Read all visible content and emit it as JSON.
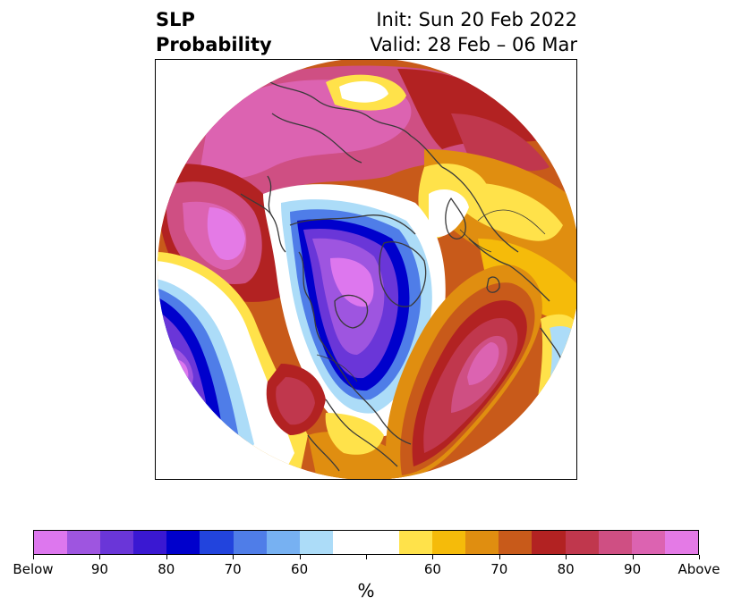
{
  "title": {
    "left_line1": "SLP",
    "left_line2": "Probability",
    "right_line1": "Init: Sun 20 Feb 2022",
    "right_line2": "Valid: 28 Feb – 06 Mar"
  },
  "colorbar": {
    "colors": [
      "#dd77ee",
      "#9e55e0",
      "#6a36d8",
      "#3a18d2",
      "#0000cc",
      "#2244dd",
      "#4f7de8",
      "#77b1f2",
      "#acdcf8",
      "#ffffff",
      "#ffffff",
      "#ffe24a",
      "#f5bb0a",
      "#e08e10",
      "#c85a1a",
      "#b22222",
      "#c0374d",
      "#cf4f83",
      "#dc63b1",
      "#e47ae6"
    ],
    "labels": [
      "Below",
      "90",
      "80",
      "70",
      "60",
      "",
      "60",
      "70",
      "80",
      "90",
      "Above"
    ],
    "unit": "%"
  },
  "map": {
    "projection": "north-polar-stereographic",
    "field": "SLP probability",
    "palette": {
      "above_high": "#e47ae6",
      "above_mid": "#cf4f83",
      "above_low": "#b22222",
      "orange": "#c85a1a",
      "amber": "#e08e10",
      "yellow": "#ffe24a",
      "below_high": "#9e55e0",
      "below_mid": "#0000cc",
      "below_low": "#4f7de8",
      "light_blue": "#acdcf8",
      "coast": "#3a3a3a"
    }
  }
}
